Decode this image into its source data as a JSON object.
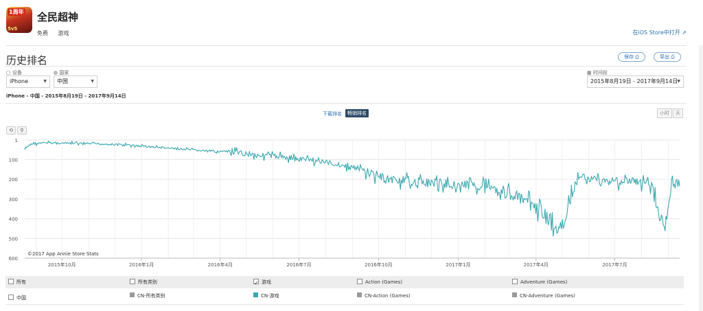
{
  "app": {
    "name": "全民超神",
    "price": "免费",
    "category": "游戏",
    "icon_badge": "1周年",
    "icon_vs": "5v5",
    "store_link": "在iOS Store中打开 ⇗"
  },
  "section": {
    "title": "历史排名",
    "save_label": "保存 ⎙",
    "export_label": "导出 ⎙"
  },
  "filters": {
    "device_label": "▢ 设备",
    "device_value": "iPhone",
    "country_label": "◍ 国家",
    "country_value": "中国",
    "date_label": "▦ 时间段",
    "date_value": "2015年8月19日 - 2017年9月14日",
    "summary": "iPhone - 中国 - 2015年8月19日 - 2017年9月14日"
  },
  "tabs": {
    "downloads": "下载排名",
    "grossing": "畅销排名"
  },
  "granularity": {
    "hour": "小时",
    "day": "天"
  },
  "controls": {
    "reset_icon": "⟲",
    "zoom_icon": "⚲"
  },
  "chart_data": {
    "type": "line",
    "copyright": "©2017 App Annie Store Stats",
    "y_axis": {
      "inverted": true,
      "ylim": [
        1,
        600
      ],
      "ticks": [
        "1",
        "100",
        "200",
        "300",
        "400",
        "500",
        "600"
      ]
    },
    "x_ticks": [
      "2015年10月",
      "2016年1月",
      "2016年4月",
      "2016年7月",
      "2016年10月",
      "2017年1月",
      "2017年4月",
      "2017年7月"
    ],
    "x_range": [
      "2015-08-19",
      "2017-09-14"
    ],
    "grid": true,
    "color": "#3aa6ad",
    "series": [
      {
        "name": "CN-游戏",
        "x": [
          "2015-08-19",
          "2015-08-26",
          "2015-09-15",
          "2015-10-10",
          "2015-11-10",
          "2015-12-10",
          "2016-01-10",
          "2016-02-10",
          "2016-03-10",
          "2016-04-10",
          "2016-05-10",
          "2016-06-10",
          "2016-07-10",
          "2016-08-10",
          "2016-09-10",
          "2016-10-10",
          "2016-11-10",
          "2016-12-10",
          "2017-01-10",
          "2017-02-10",
          "2017-03-10",
          "2017-04-10",
          "2017-04-25",
          "2017-05-05",
          "2017-05-15",
          "2017-05-25",
          "2017-06-10",
          "2017-07-10",
          "2017-08-10",
          "2017-08-28",
          "2017-09-05",
          "2017-09-14"
        ],
        "values": [
          50,
          20,
          15,
          18,
          20,
          25,
          35,
          45,
          55,
          60,
          75,
          85,
          100,
          120,
          150,
          200,
          210,
          220,
          230,
          235,
          290,
          370,
          460,
          420,
          220,
          190,
          205,
          210,
          215,
          445,
          215,
          225
        ]
      }
    ]
  },
  "legend": {
    "head": [
      {
        "label": "所有",
        "checked": false
      },
      {
        "label": "所有类别",
        "checked": false
      },
      {
        "label": "游戏",
        "checked": true
      },
      {
        "label": "Action (Games)",
        "checked": false
      },
      {
        "label": "Adventure (Games)",
        "checked": false
      }
    ],
    "row_country": "中国",
    "row": [
      {
        "label": "CN-所有类别",
        "color": "#999999"
      },
      {
        "label": "CN-游戏",
        "color": "#3aa6ad"
      },
      {
        "label": "CN-Action (Games)",
        "color": "#999999"
      },
      {
        "label": "CN-Adventure (Games)",
        "color": "#999999"
      }
    ]
  }
}
